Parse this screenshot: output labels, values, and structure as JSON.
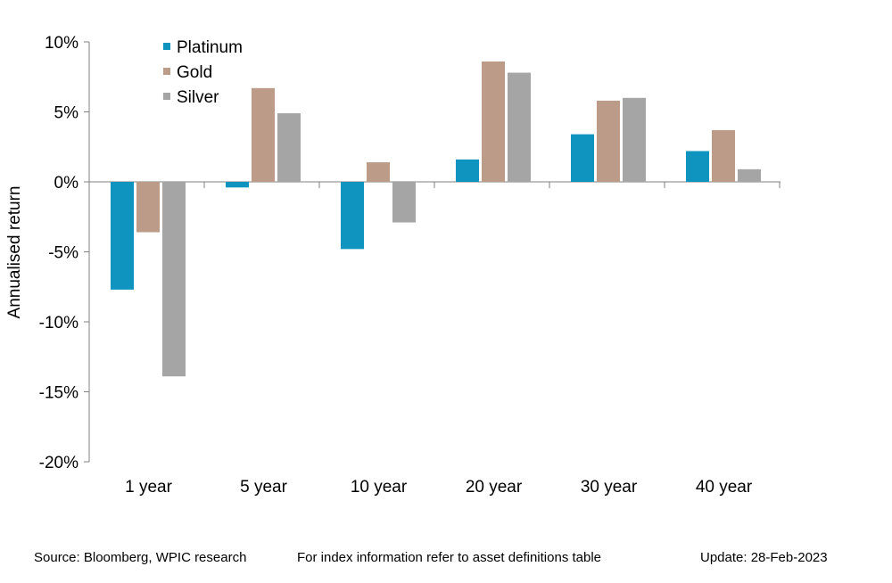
{
  "chart_data": {
    "type": "bar",
    "title": "",
    "xlabel": "",
    "ylabel": "Annualised return",
    "categories": [
      "1 year",
      "5 year",
      "10 year",
      "20 year",
      "30 year",
      "40 year"
    ],
    "ylim": [
      -20,
      10
    ],
    "yticks": [
      10,
      5,
      0,
      -5,
      -10,
      -15,
      -20
    ],
    "ytick_labels": [
      "10%",
      "5%",
      "0%",
      "-5%",
      "-10%",
      "-15%",
      "-20%"
    ],
    "series": [
      {
        "name": "Platinum",
        "color": "#0E94BE",
        "values": [
          -7.7,
          -0.4,
          -4.8,
          1.6,
          3.4,
          2.2
        ]
      },
      {
        "name": "Gold",
        "color": "#BC9C88",
        "values": [
          -3.6,
          6.7,
          1.4,
          8.6,
          5.8,
          3.7
        ]
      },
      {
        "name": "Silver",
        "color": "#A5A5A5",
        "values": [
          -13.9,
          4.9,
          -2.9,
          7.8,
          6.0,
          0.9
        ]
      }
    ],
    "legend_position": "top-left",
    "grid": false
  },
  "footer": {
    "source": "Source: Bloomberg, WPIC research",
    "index_note": "For index information refer to asset definitions table",
    "update": "Update: 28-Feb-2023"
  }
}
